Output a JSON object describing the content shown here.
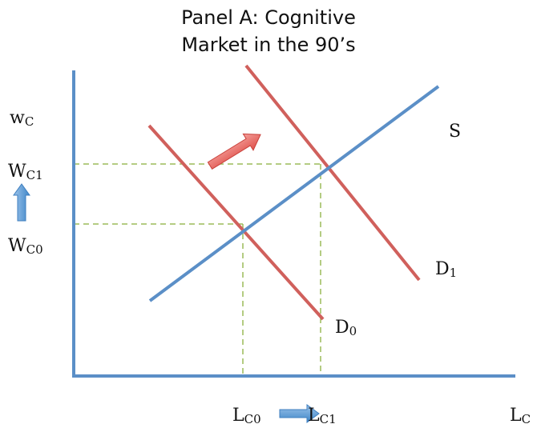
{
  "title": {
    "line1": "Panel A: Cognitive",
    "line2": "Market in the 90’s"
  },
  "labels": {
    "y_axis": {
      "main": "w",
      "sub": "C"
    },
    "x_axis": {
      "main": "L",
      "sub": "C"
    },
    "w_c1": {
      "main": "W",
      "sub": "C1"
    },
    "w_c0": {
      "main": "W",
      "sub": "C0"
    },
    "l_c0": {
      "main": "L",
      "sub": "C0"
    },
    "l_c1": {
      "main": "L",
      "sub": "C1"
    },
    "supply": "S",
    "demand_1": {
      "main": "D",
      "sub": "1"
    },
    "demand_0": {
      "main": "D",
      "sub": "0"
    }
  },
  "colors": {
    "axes": "#5b8fc7",
    "supply": "#5b8fc7",
    "demand": "#d0605c",
    "guides": "#9bbb59",
    "shift_arrow": "#e8706a",
    "blue_arrow": "#5b9bd5"
  }
}
